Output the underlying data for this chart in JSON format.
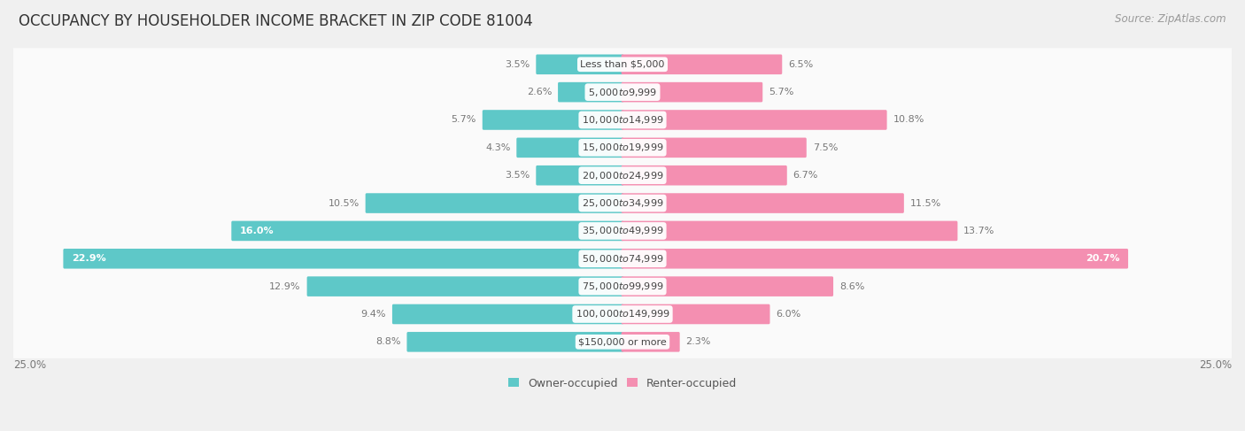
{
  "title": "OCCUPANCY BY HOUSEHOLDER INCOME BRACKET IN ZIP CODE 81004",
  "source": "Source: ZipAtlas.com",
  "categories": [
    "Less than $5,000",
    "$5,000 to $9,999",
    "$10,000 to $14,999",
    "$15,000 to $19,999",
    "$20,000 to $24,999",
    "$25,000 to $34,999",
    "$35,000 to $49,999",
    "$50,000 to $74,999",
    "$75,000 to $99,999",
    "$100,000 to $149,999",
    "$150,000 or more"
  ],
  "owner_values": [
    3.5,
    2.6,
    5.7,
    4.3,
    3.5,
    10.5,
    16.0,
    22.9,
    12.9,
    9.4,
    8.8
  ],
  "renter_values": [
    6.5,
    5.7,
    10.8,
    7.5,
    6.7,
    11.5,
    13.7,
    20.7,
    8.6,
    6.0,
    2.3
  ],
  "owner_color": "#5EC8C8",
  "renter_color": "#F48FB1",
  "background_color": "#f0f0f0",
  "bar_row_color": "#e8e8e8",
  "bar_background": "#fafafa",
  "xlim": 25.0,
  "legend_owner": "Owner-occupied",
  "legend_renter": "Renter-occupied",
  "title_fontsize": 12,
  "source_fontsize": 8.5,
  "label_fontsize": 8,
  "category_fontsize": 8
}
